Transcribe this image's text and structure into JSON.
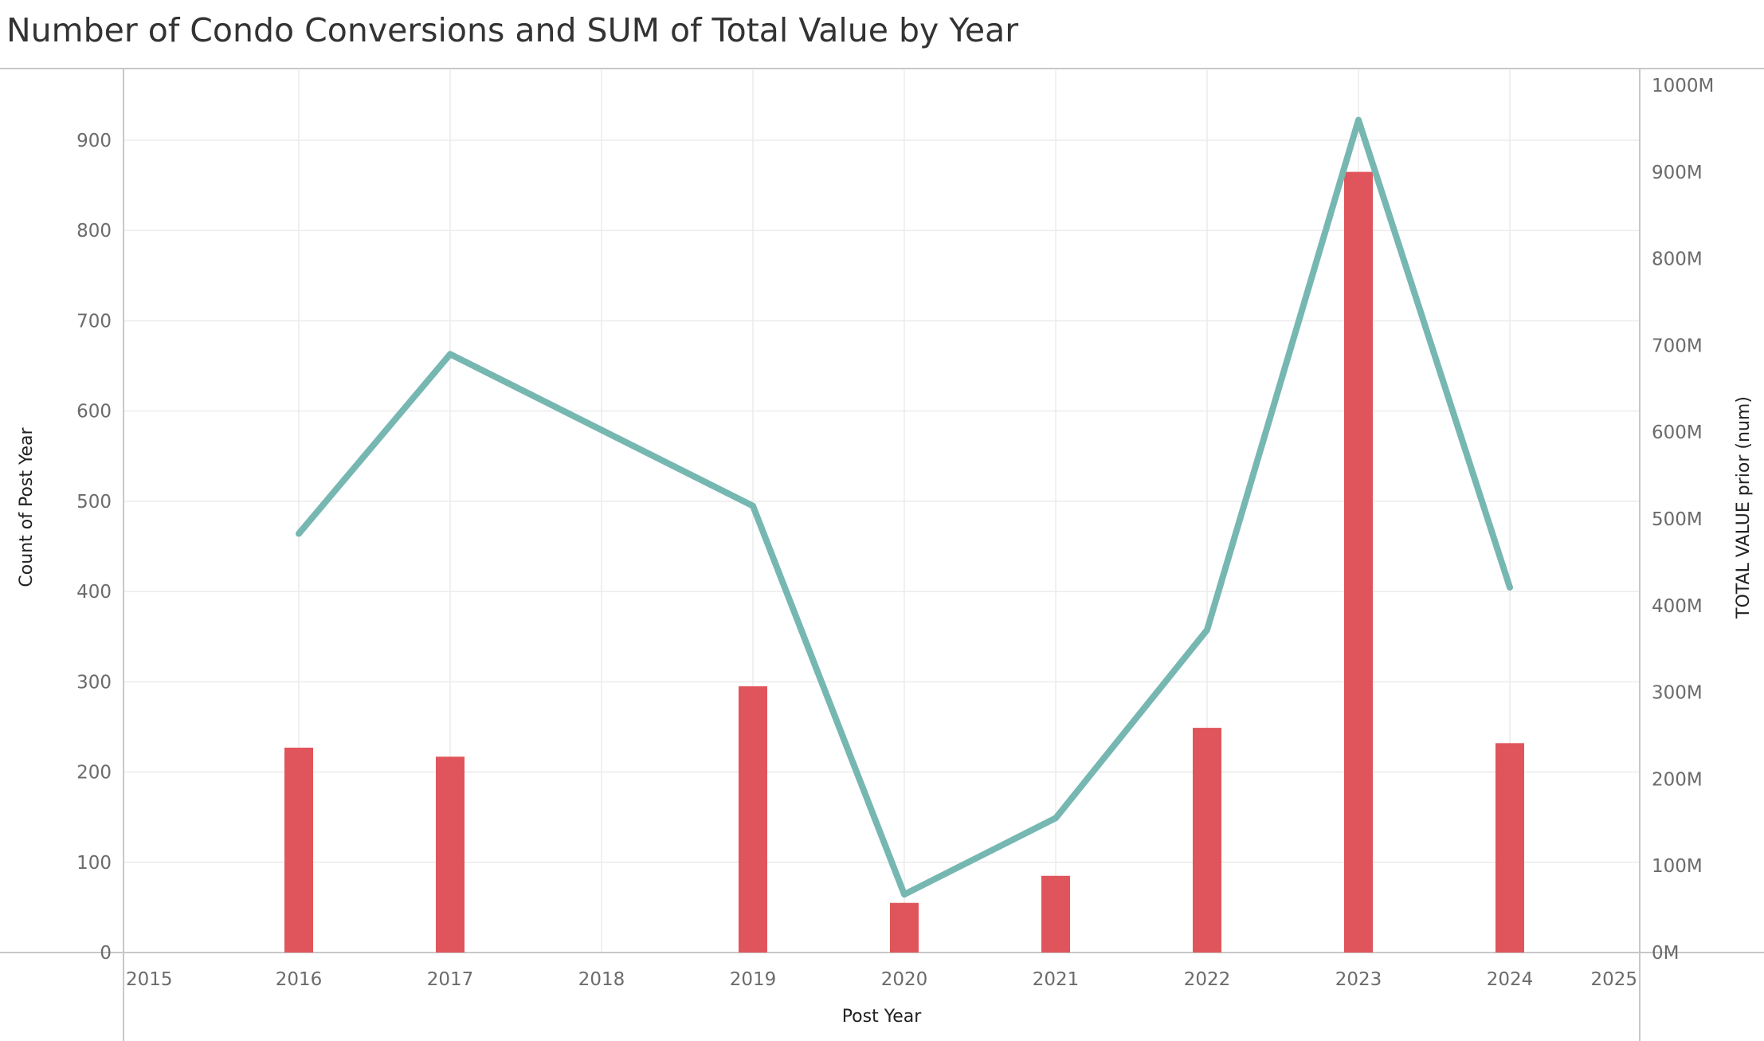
{
  "title": "Number of Condo Conversions and SUM of Total Value by Year",
  "colors": {
    "bar": "#e0555b",
    "line": "#76b7b2",
    "grid": "#ebebeb",
    "axis": "#c8c8c8",
    "tick_text": "#6b6b6b"
  },
  "chart_data": {
    "type": "bar",
    "combo": "bar-line-dual-axis",
    "title": "Number of Condo Conversions and SUM of Total Value by Year",
    "xlabel": "Post Year",
    "ylabel": "Count of Post Year",
    "y2label": "TOTAL VALUE prior (num)",
    "xlim": [
      2015,
      2025
    ],
    "x_ticks": [
      "2015",
      "2016",
      "2017",
      "2018",
      "2019",
      "2020",
      "2021",
      "2022",
      "2023",
      "2024",
      "2025"
    ],
    "ylim": [
      0,
      900
    ],
    "y_ticks": [
      "0",
      "100",
      "200",
      "300",
      "400",
      "500",
      "600",
      "700",
      "800",
      "900"
    ],
    "y2lim": [
      0,
      1000000000
    ],
    "y2_ticks": [
      "0M",
      "100M",
      "200M",
      "300M",
      "400M",
      "500M",
      "600M",
      "700M",
      "800M",
      "900M",
      "1000M"
    ],
    "grid": true,
    "series": [
      {
        "type": "bar",
        "axis": "left",
        "x": [
          2016,
          2017,
          2019,
          2020,
          2021,
          2022,
          2023,
          2024
        ],
        "values": [
          227,
          217,
          295,
          55,
          85,
          249,
          865,
          232
        ]
      },
      {
        "type": "line",
        "axis": "right",
        "x": [
          2016,
          2017,
          2019,
          2020,
          2021,
          2022,
          2023,
          2024
        ],
        "values": [
          483000000,
          690000000,
          515000000,
          67000000,
          155000000,
          372000000,
          960000000,
          421000000
        ]
      }
    ]
  }
}
